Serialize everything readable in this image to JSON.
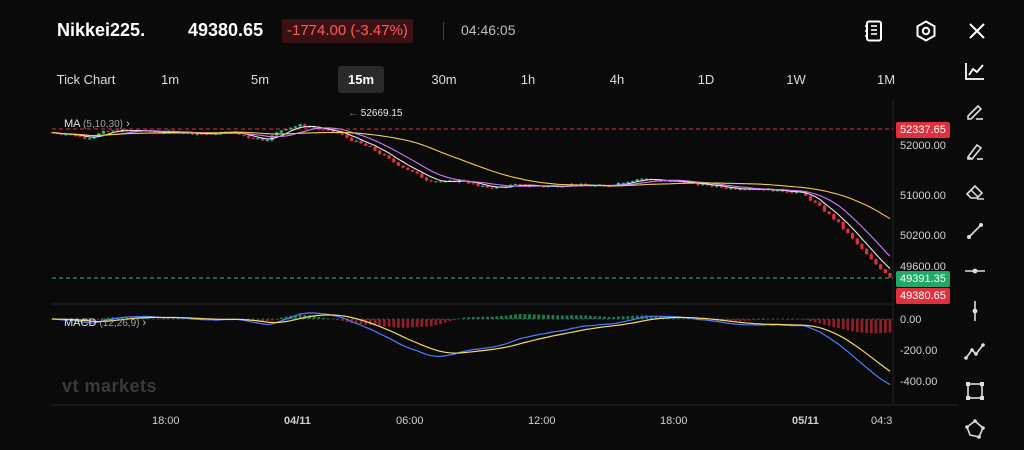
{
  "header": {
    "symbol": "Nikkei225.",
    "price": "49380.65",
    "change": "-1774.00 (-3.47%)",
    "time": "04:46:05",
    "icons": [
      "notebook-icon",
      "settings-hex-icon",
      "close-icon"
    ]
  },
  "tabs": [
    {
      "label": "Tick Chart",
      "active": false
    },
    {
      "label": "1m",
      "active": false
    },
    {
      "label": "5m",
      "active": false
    },
    {
      "label": "15m",
      "active": true
    },
    {
      "label": "30m",
      "active": false
    },
    {
      "label": "1h",
      "active": false
    },
    {
      "label": "4h",
      "active": false
    },
    {
      "label": "1D",
      "active": false
    },
    {
      "label": "1W",
      "active": false
    },
    {
      "label": "1M",
      "active": false
    }
  ],
  "toolbar": [
    "line-chart-icon",
    "pencil-icon",
    "brush-pencil-icon",
    "eraser-icon",
    "trend-line-icon",
    "horizontal-line-icon",
    "vertical-line-icon",
    "polyline-icon",
    "rectangle-icon",
    "polygon-icon"
  ],
  "chart": {
    "watermark": "vt markets",
    "ma_label": "MA",
    "ma_params": "(5,10,30)",
    "macd_label": "MACD",
    "macd_params": "(12,26,9)",
    "high_marker": "52669.15",
    "price_axis": [
      "52000.00",
      "51000.00",
      "50200.00",
      "49600.00"
    ],
    "tag_upper": "52337.65",
    "tag_bid": "49391.35",
    "tag_ask": "49380.65",
    "macd_axis": [
      "0.00",
      "-200.00",
      "-400.00"
    ],
    "time_axis": [
      "18:00",
      "04/11",
      "06:00",
      "12:00",
      "18:00",
      "05/11",
      "04:3"
    ],
    "colors": {
      "up": "#26c281",
      "down": "#e0303e",
      "ma5": "#e6e6e6",
      "ma10": "#c77dff",
      "ma30": "#f2c94c",
      "macd_dif": "#4d7cff",
      "macd_dea": "#f2d96b"
    }
  },
  "chart_data": {
    "type": "line",
    "close_path": [
      52270,
      52230,
      52160,
      52290,
      52310,
      52300,
      52270,
      52290,
      52250,
      52240,
      52280,
      52180,
      52120,
      52350,
      52420,
      52330,
      52260,
      52090,
      51940,
      51710,
      51520,
      51330,
      51270,
      51320,
      51180,
      51170,
      51220,
      51200,
      51190,
      51230,
      51210,
      51190,
      51280,
      51350,
      51310,
      51280,
      51250,
      51200,
      51150,
      51160,
      51130,
      51100,
      51070,
      50800,
      50500,
      50100,
      49700,
      49390
    ],
    "current_price": 49380.65,
    "reference_price": 52337.65,
    "high": 52669.15
  }
}
